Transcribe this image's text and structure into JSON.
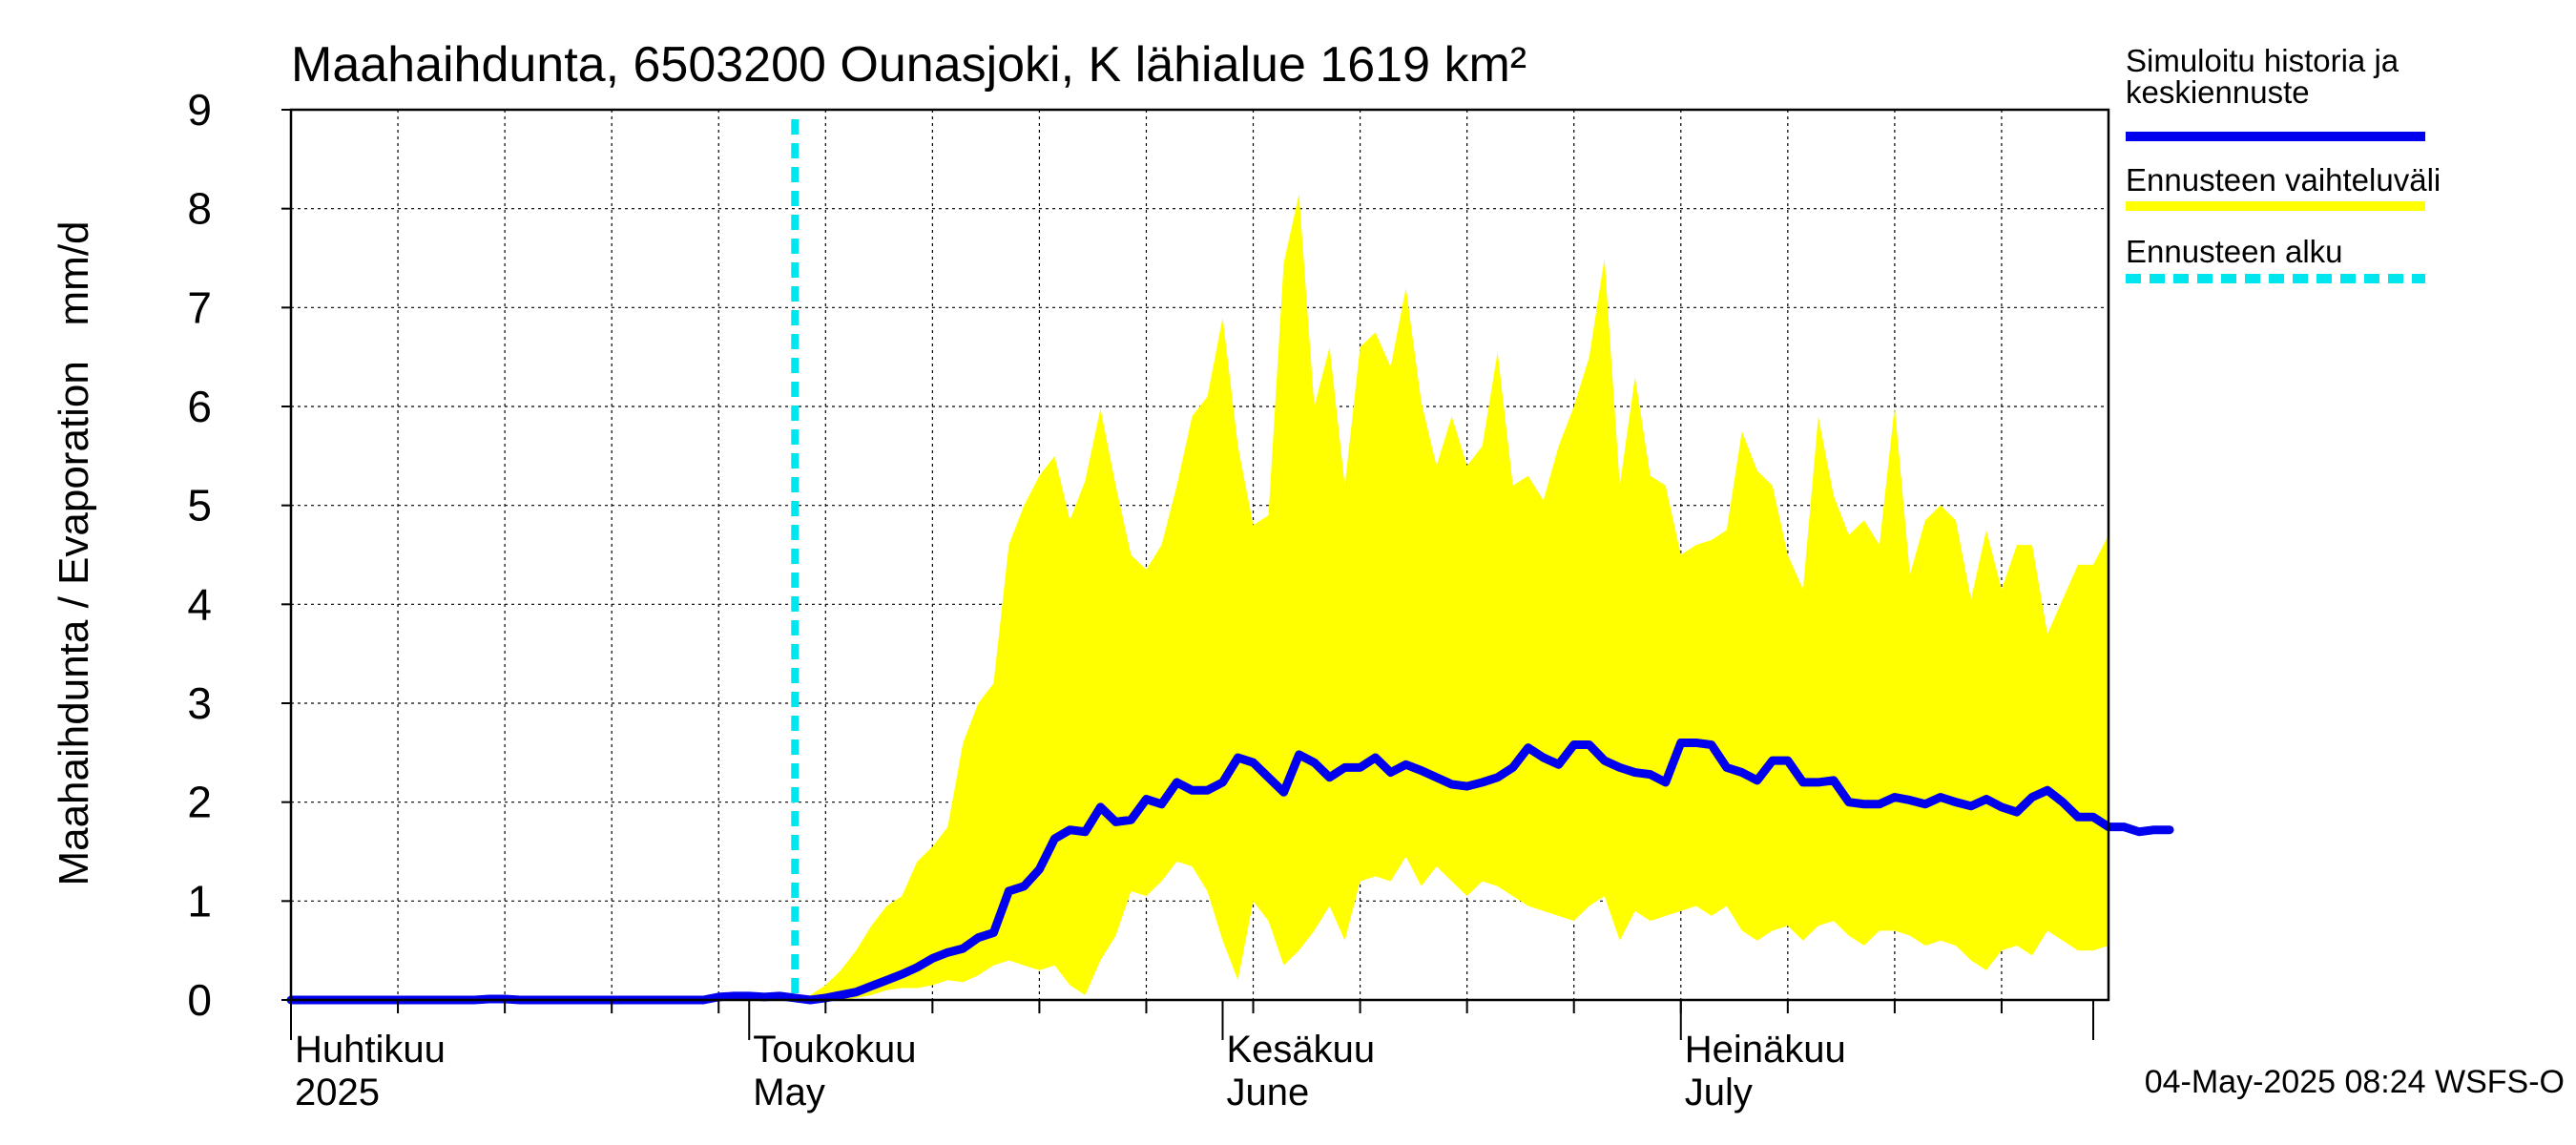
{
  "chart_data": {
    "type": "line",
    "title": "Maahaihdunta, 6503200 Ounasjoki, K lähialue 1619 km²",
    "ylabel": "Maahaihdunta / Evaporation   mm/d",
    "ylim": [
      0,
      9
    ],
    "yticks": [
      "0",
      "1",
      "2",
      "3",
      "4",
      "5",
      "6",
      "7",
      "8",
      "9"
    ],
    "grid": true,
    "legend_position": "right",
    "month_labels": [
      {
        "top": "Huhtikuu",
        "bottom": "2025",
        "date": "2025-04-01"
      },
      {
        "top": "Toukokuu",
        "bottom": "May",
        "date": "2025-05-01"
      },
      {
        "top": "Kesäkuu",
        "bottom": "June",
        "date": "2025-06-01"
      },
      {
        "top": "Heinäkuu",
        "bottom": "July",
        "date": "2025-07-01"
      }
    ],
    "x_start": "2025-04-01",
    "x_end": "2025-07-29",
    "forecast_start": "2025-05-04",
    "series": [
      {
        "name": "Simuloitu historia ja keskiennuste",
        "color": "#0000ee",
        "x_start": "2025-04-01",
        "x_step_days": 1,
        "values": [
          0,
          0,
          0,
          0,
          0,
          0,
          0,
          0,
          0,
          0,
          0,
          0,
          0,
          0.01,
          0.01,
          0,
          0,
          0,
          0,
          0,
          0,
          0,
          0,
          0,
          0,
          0,
          0,
          0,
          0.03,
          0.04,
          0.04,
          0.03,
          0.04,
          0.02,
          0,
          0.02,
          0.05,
          0.08,
          0.14,
          0.2,
          0.26,
          0.33,
          0.42,
          0.48,
          0.52,
          0.63,
          0.68,
          1.1,
          1.15,
          1.32,
          1.63,
          1.72,
          1.7,
          1.95,
          1.8,
          1.82,
          2.03,
          1.98,
          2.2,
          2.12,
          2.12,
          2.2,
          2.45,
          2.4,
          2.25,
          2.1,
          2.48,
          2.4,
          2.25,
          2.35,
          2.35,
          2.45,
          2.3,
          2.38,
          2.32,
          2.25,
          2.18,
          2.16,
          2.2,
          2.25,
          2.35,
          2.55,
          2.45,
          2.38,
          2.58,
          2.58,
          2.42,
          2.35,
          2.3,
          2.28,
          2.2,
          2.6,
          2.6,
          2.58,
          2.35,
          2.3,
          2.22,
          2.42,
          2.42,
          2.2,
          2.2,
          2.22,
          2.0,
          1.98,
          1.98,
          2.05,
          2.02,
          1.98,
          2.05,
          2.0,
          1.96,
          2.03,
          1.95,
          1.9,
          2.05,
          2.12,
          2.0,
          1.85,
          1.85,
          1.75,
          1.75,
          1.7,
          1.72,
          1.72
        ]
      },
      {
        "name": "Ennusteen vaihteluväli",
        "color": "#ffff00",
        "x_start": "2025-05-04",
        "x_step_days": 1,
        "upper": [
          0.02,
          0.05,
          0.15,
          0.3,
          0.5,
          0.75,
          0.95,
          1.05,
          1.4,
          1.55,
          1.75,
          2.6,
          3.0,
          3.2,
          4.6,
          5.0,
          5.3,
          5.5,
          4.85,
          5.25,
          5.98,
          5.2,
          4.5,
          4.35,
          4.6,
          5.2,
          5.9,
          6.1,
          6.9,
          5.6,
          4.8,
          4.9,
          7.45,
          8.15,
          6.0,
          6.6,
          5.2,
          6.6,
          6.75,
          6.4,
          7.2,
          6.05,
          5.4,
          5.9,
          5.4,
          5.6,
          6.55,
          5.2,
          5.3,
          5.05,
          5.6,
          6.0,
          6.5,
          7.5,
          5.2,
          6.3,
          5.3,
          5.2,
          4.5,
          4.6,
          4.65,
          4.75,
          5.75,
          5.35,
          5.2,
          4.5,
          4.15,
          5.9,
          5.1,
          4.7,
          4.85,
          4.6,
          6.0,
          4.3,
          4.85,
          5.0,
          4.85,
          4.05,
          4.75,
          4.15,
          4.6,
          4.6,
          3.7,
          4.05,
          4.4,
          4.4,
          4.7
        ],
        "lower": [
          0,
          0,
          0,
          0,
          0.02,
          0.05,
          0.1,
          0.12,
          0.12,
          0.15,
          0.2,
          0.18,
          0.25,
          0.35,
          0.4,
          0.35,
          0.3,
          0.35,
          0.15,
          0.05,
          0.4,
          0.65,
          1.1,
          1.05,
          1.2,
          1.4,
          1.35,
          1.1,
          0.6,
          0.2,
          1.0,
          0.8,
          0.35,
          0.5,
          0.7,
          0.95,
          0.6,
          1.2,
          1.25,
          1.2,
          1.45,
          1.15,
          1.35,
          1.2,
          1.05,
          1.2,
          1.15,
          1.05,
          0.95,
          0.9,
          0.85,
          0.8,
          0.95,
          1.05,
          0.6,
          0.9,
          0.8,
          0.85,
          0.9,
          0.95,
          0.85,
          0.95,
          0.7,
          0.6,
          0.7,
          0.75,
          0.6,
          0.75,
          0.8,
          0.65,
          0.55,
          0.7,
          0.7,
          0.65,
          0.55,
          0.6,
          0.55,
          0.4,
          0.3,
          0.5,
          0.55,
          0.45,
          0.7,
          0.6,
          0.5,
          0.5,
          0.55
        ]
      },
      {
        "name": "Ennusteen alku",
        "color": "#00e5ee",
        "x": "2025-05-04"
      }
    ]
  },
  "legend": [
    {
      "line1": "Simuloitu historia ja",
      "line2": "keskiennuste",
      "color": "#0000ee",
      "style": "solid"
    },
    {
      "line1": "Ennusteen vaihteluväli",
      "line2": "",
      "color": "#ffff00",
      "style": "solid"
    },
    {
      "line1": "Ennusteen alku",
      "line2": "",
      "color": "#00e5ee",
      "style": "dashed"
    }
  ],
  "footer_stamp": "04-May-2025 08:24 WSFS-O"
}
